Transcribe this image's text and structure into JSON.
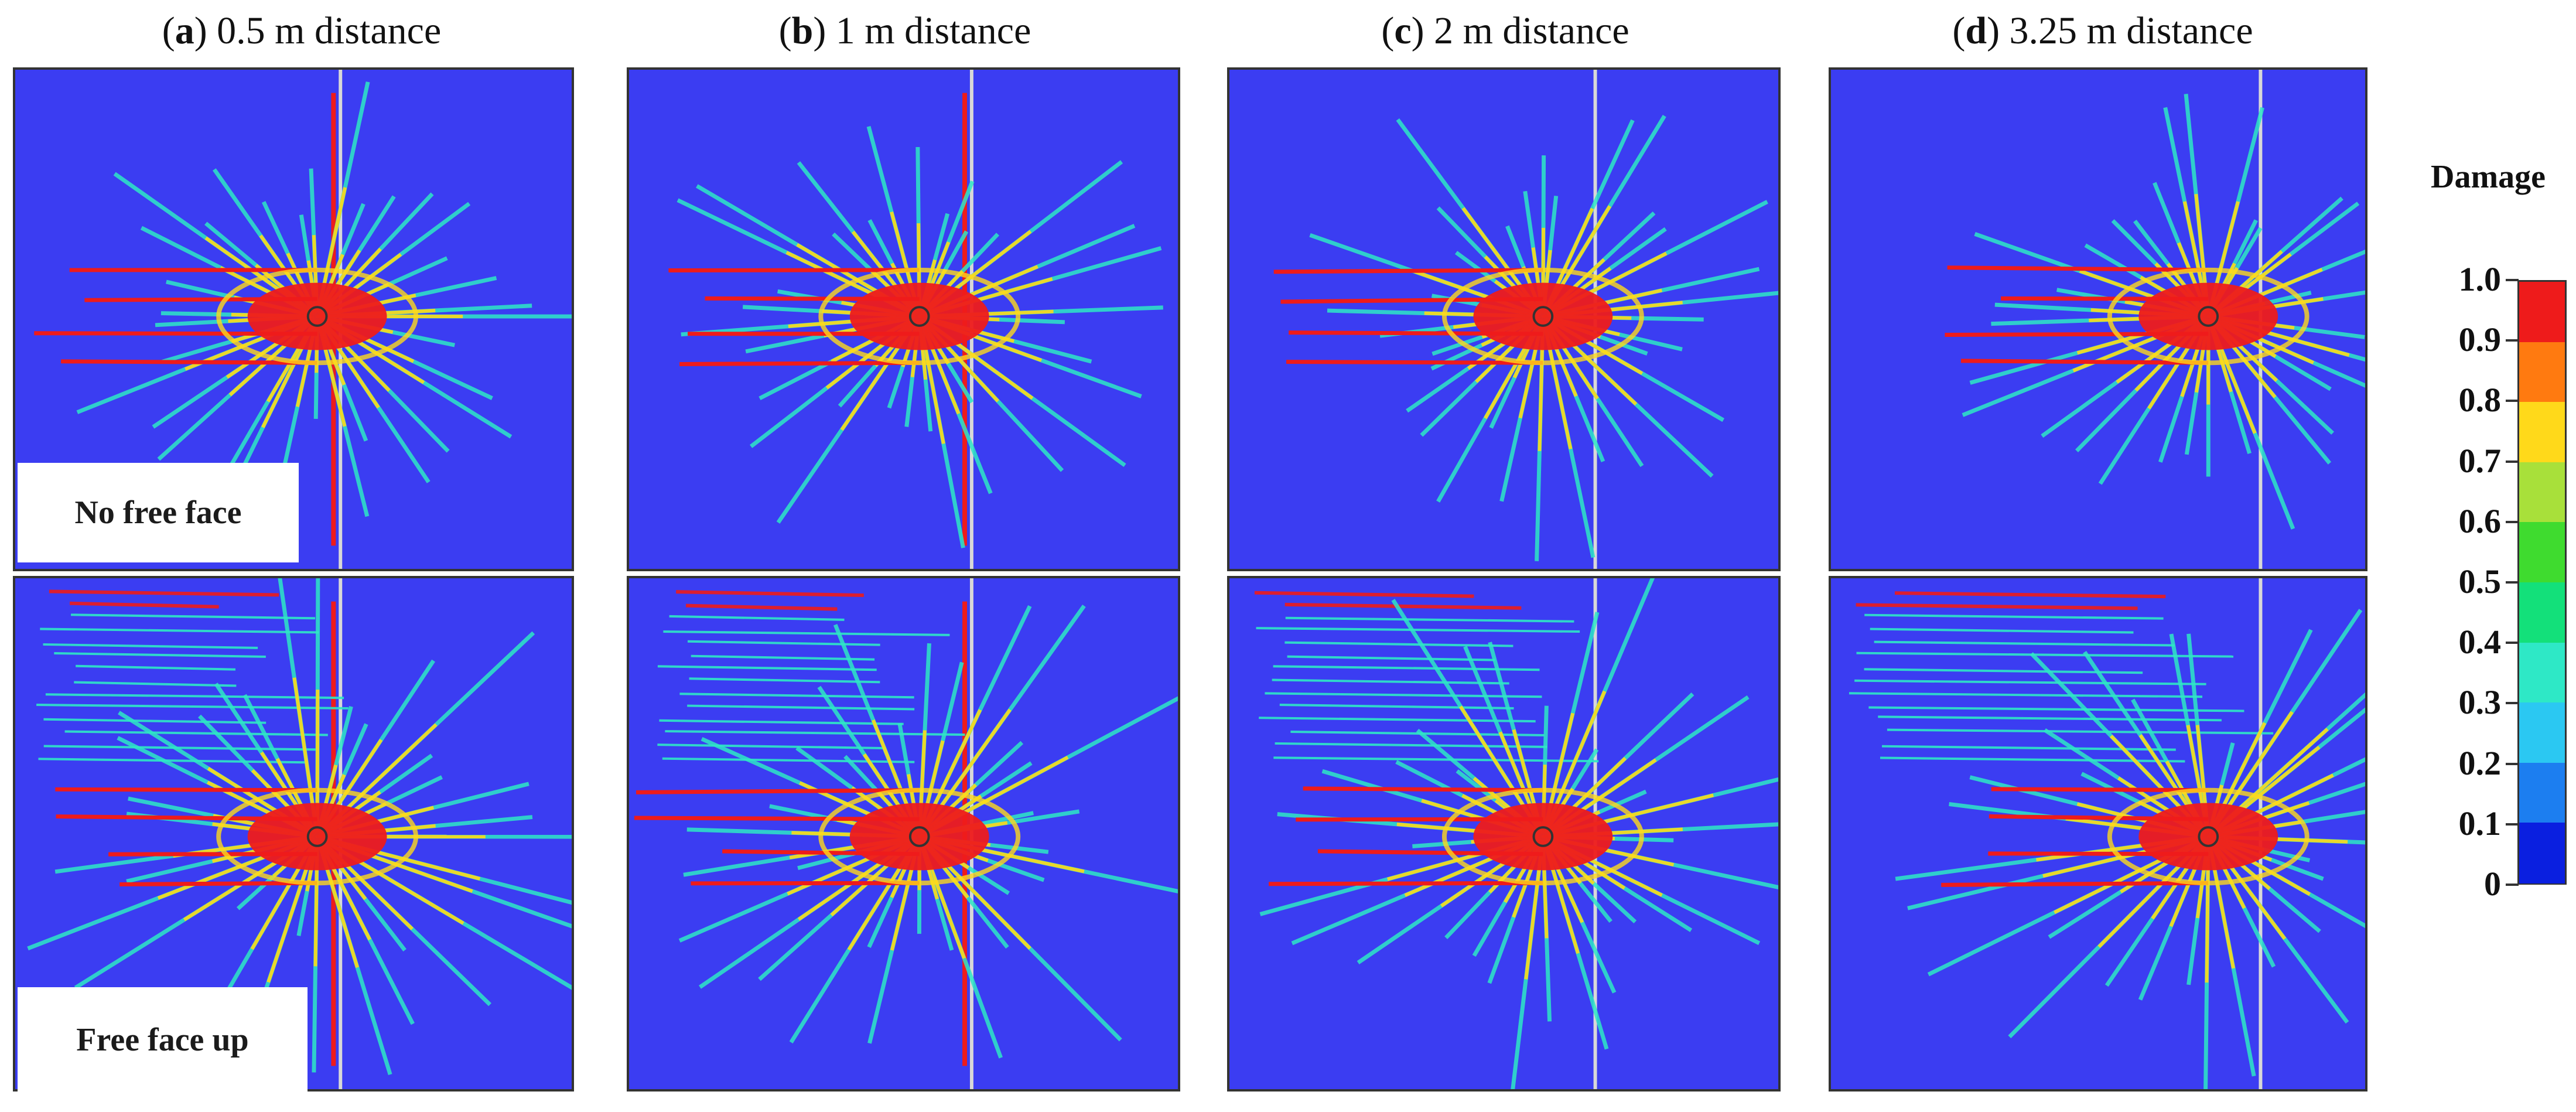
{
  "columns": [
    {
      "letter": "a",
      "caption": ") 0.5 m distance"
    },
    {
      "letter": "b",
      "caption": ") 1 m distance"
    },
    {
      "letter": "c",
      "caption": ") 2 m distance"
    },
    {
      "letter": "d",
      "caption": ") 3.25 m distance"
    }
  ],
  "row_labels": {
    "top": "No free face",
    "bottom": "Free face up"
  },
  "colorbar": {
    "title": "Damage",
    "ticks": [
      "1.0",
      "0.9",
      "0.8",
      "0.7",
      "0.6",
      "0.5",
      "0.4",
      "0.3",
      "0.2",
      "0.1",
      "0"
    ],
    "colors": [
      "#ee1b1b",
      "#ff7a10",
      "#ffd91a",
      "#a8e03a",
      "#3fdb2f",
      "#13e07a",
      "#2ee8c6",
      "#2bc8f2",
      "#1c7ef0",
      "#0a1fe0"
    ]
  },
  "colors": {
    "background": "#3b3df2",
    "crack_high": "#ee1b1b",
    "crack_mid": "#ffd91a",
    "crack_low": "#2ee8c6"
  }
}
